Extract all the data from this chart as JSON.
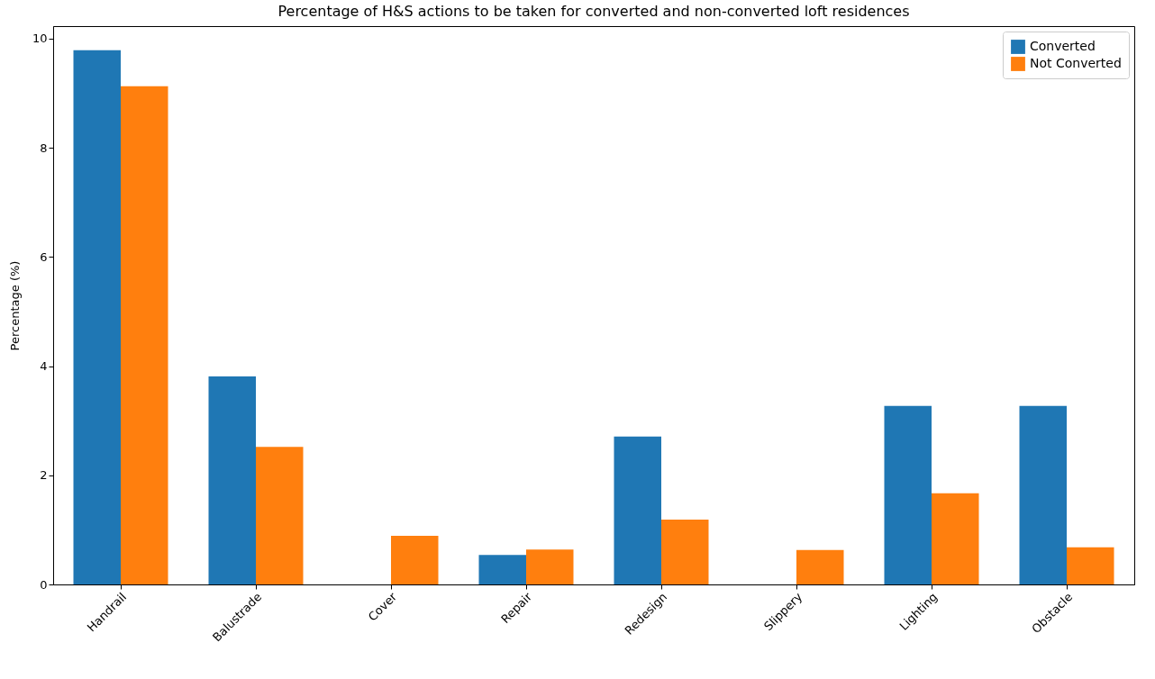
{
  "chart_data": {
    "type": "bar",
    "title": "Percentage of H&S actions to be taken for converted and non-converted loft residences",
    "ylabel": "Percentage (%)",
    "categories": [
      "Handrail",
      "Balustrade",
      "Cover",
      "Repair",
      "Redesign",
      "Slippery",
      "Lighting",
      "Obstacle"
    ],
    "series": [
      {
        "name": "Converted",
        "color": "#1f77b4",
        "values": [
          9.79,
          3.81,
          0,
          0.54,
          2.71,
          0,
          3.27,
          3.27
        ]
      },
      {
        "name": "Not Converted",
        "color": "#ff7f0e",
        "values": [
          9.13,
          2.52,
          0.89,
          0.64,
          1.19,
          0.63,
          1.67,
          0.68
        ]
      }
    ],
    "ylim": [
      0,
      10.23
    ],
    "yticks": [
      0,
      2,
      4,
      6,
      8,
      10
    ],
    "grid": false,
    "legend": "top right"
  }
}
